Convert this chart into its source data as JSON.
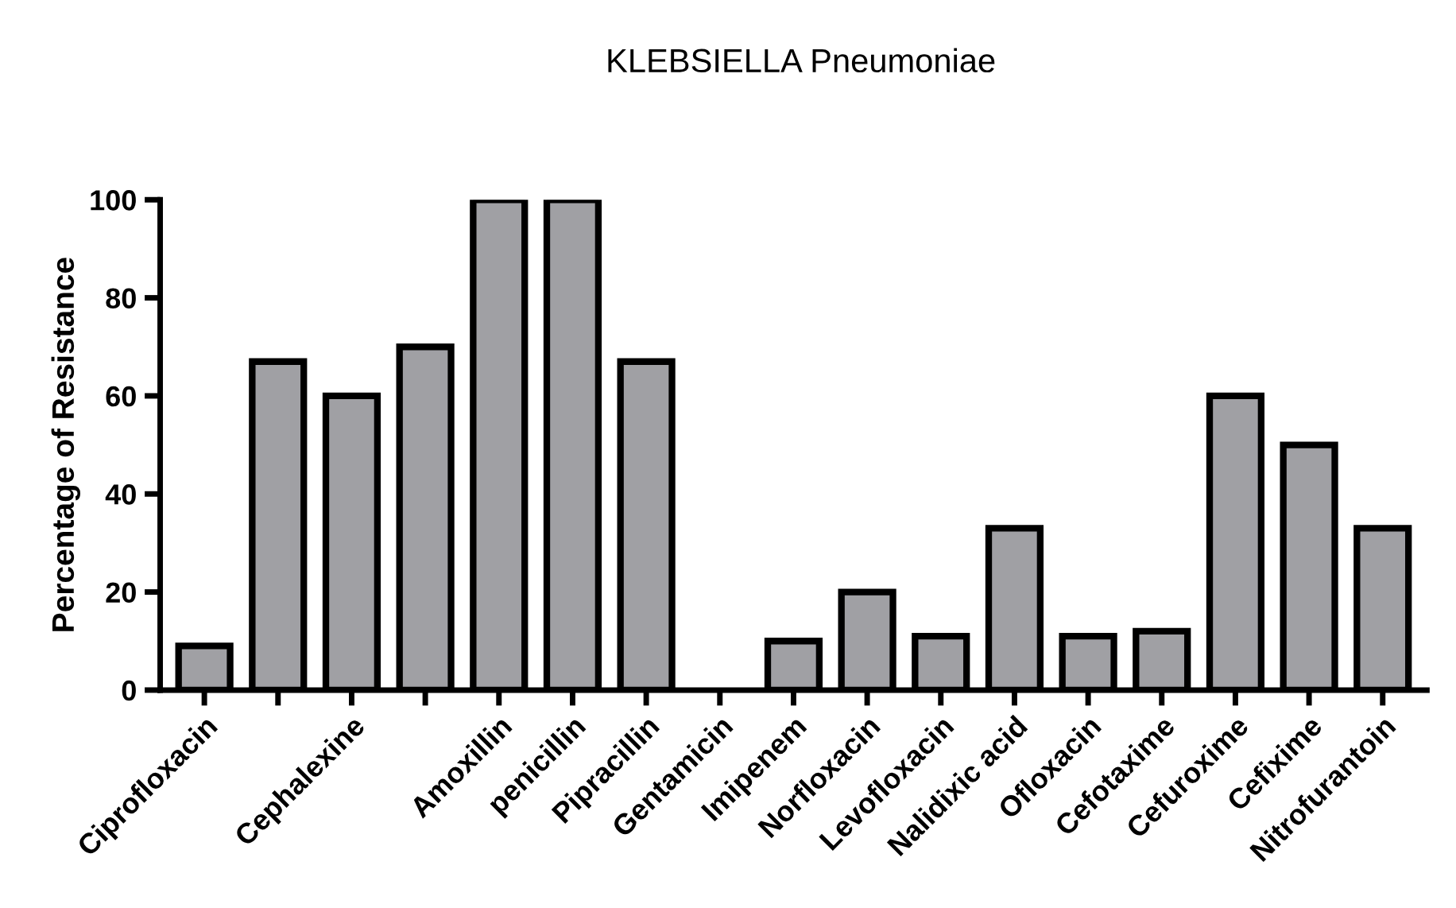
{
  "chart_data": {
    "type": "bar",
    "title": "KLEBSIELLA Pneumoniae",
    "ylabel": "Percentage of Resistance",
    "categories": [
      "Ciprofloxacin",
      null,
      "Cephalexine",
      null,
      "Amoxillin",
      "penicillin",
      "Pipracillin",
      "Gentamicin",
      "Imipenem",
      "Norfloxacin",
      "Levofloxacin",
      "Nalidixic acid",
      "Ofloxacin",
      "Cefotaxime",
      "Cefuroxime",
      "Cefixime",
      "Nitrofurantoin"
    ],
    "values": [
      9,
      67,
      60,
      70,
      100,
      100,
      67,
      0,
      10,
      20,
      11,
      33,
      11,
      12,
      60,
      50,
      33
    ],
    "color": "#a0a0a4",
    "ylim": [
      0,
      100
    ],
    "yticks": [
      0,
      20,
      40,
      60,
      80,
      100
    ],
    "grid": false,
    "legend": false
  }
}
